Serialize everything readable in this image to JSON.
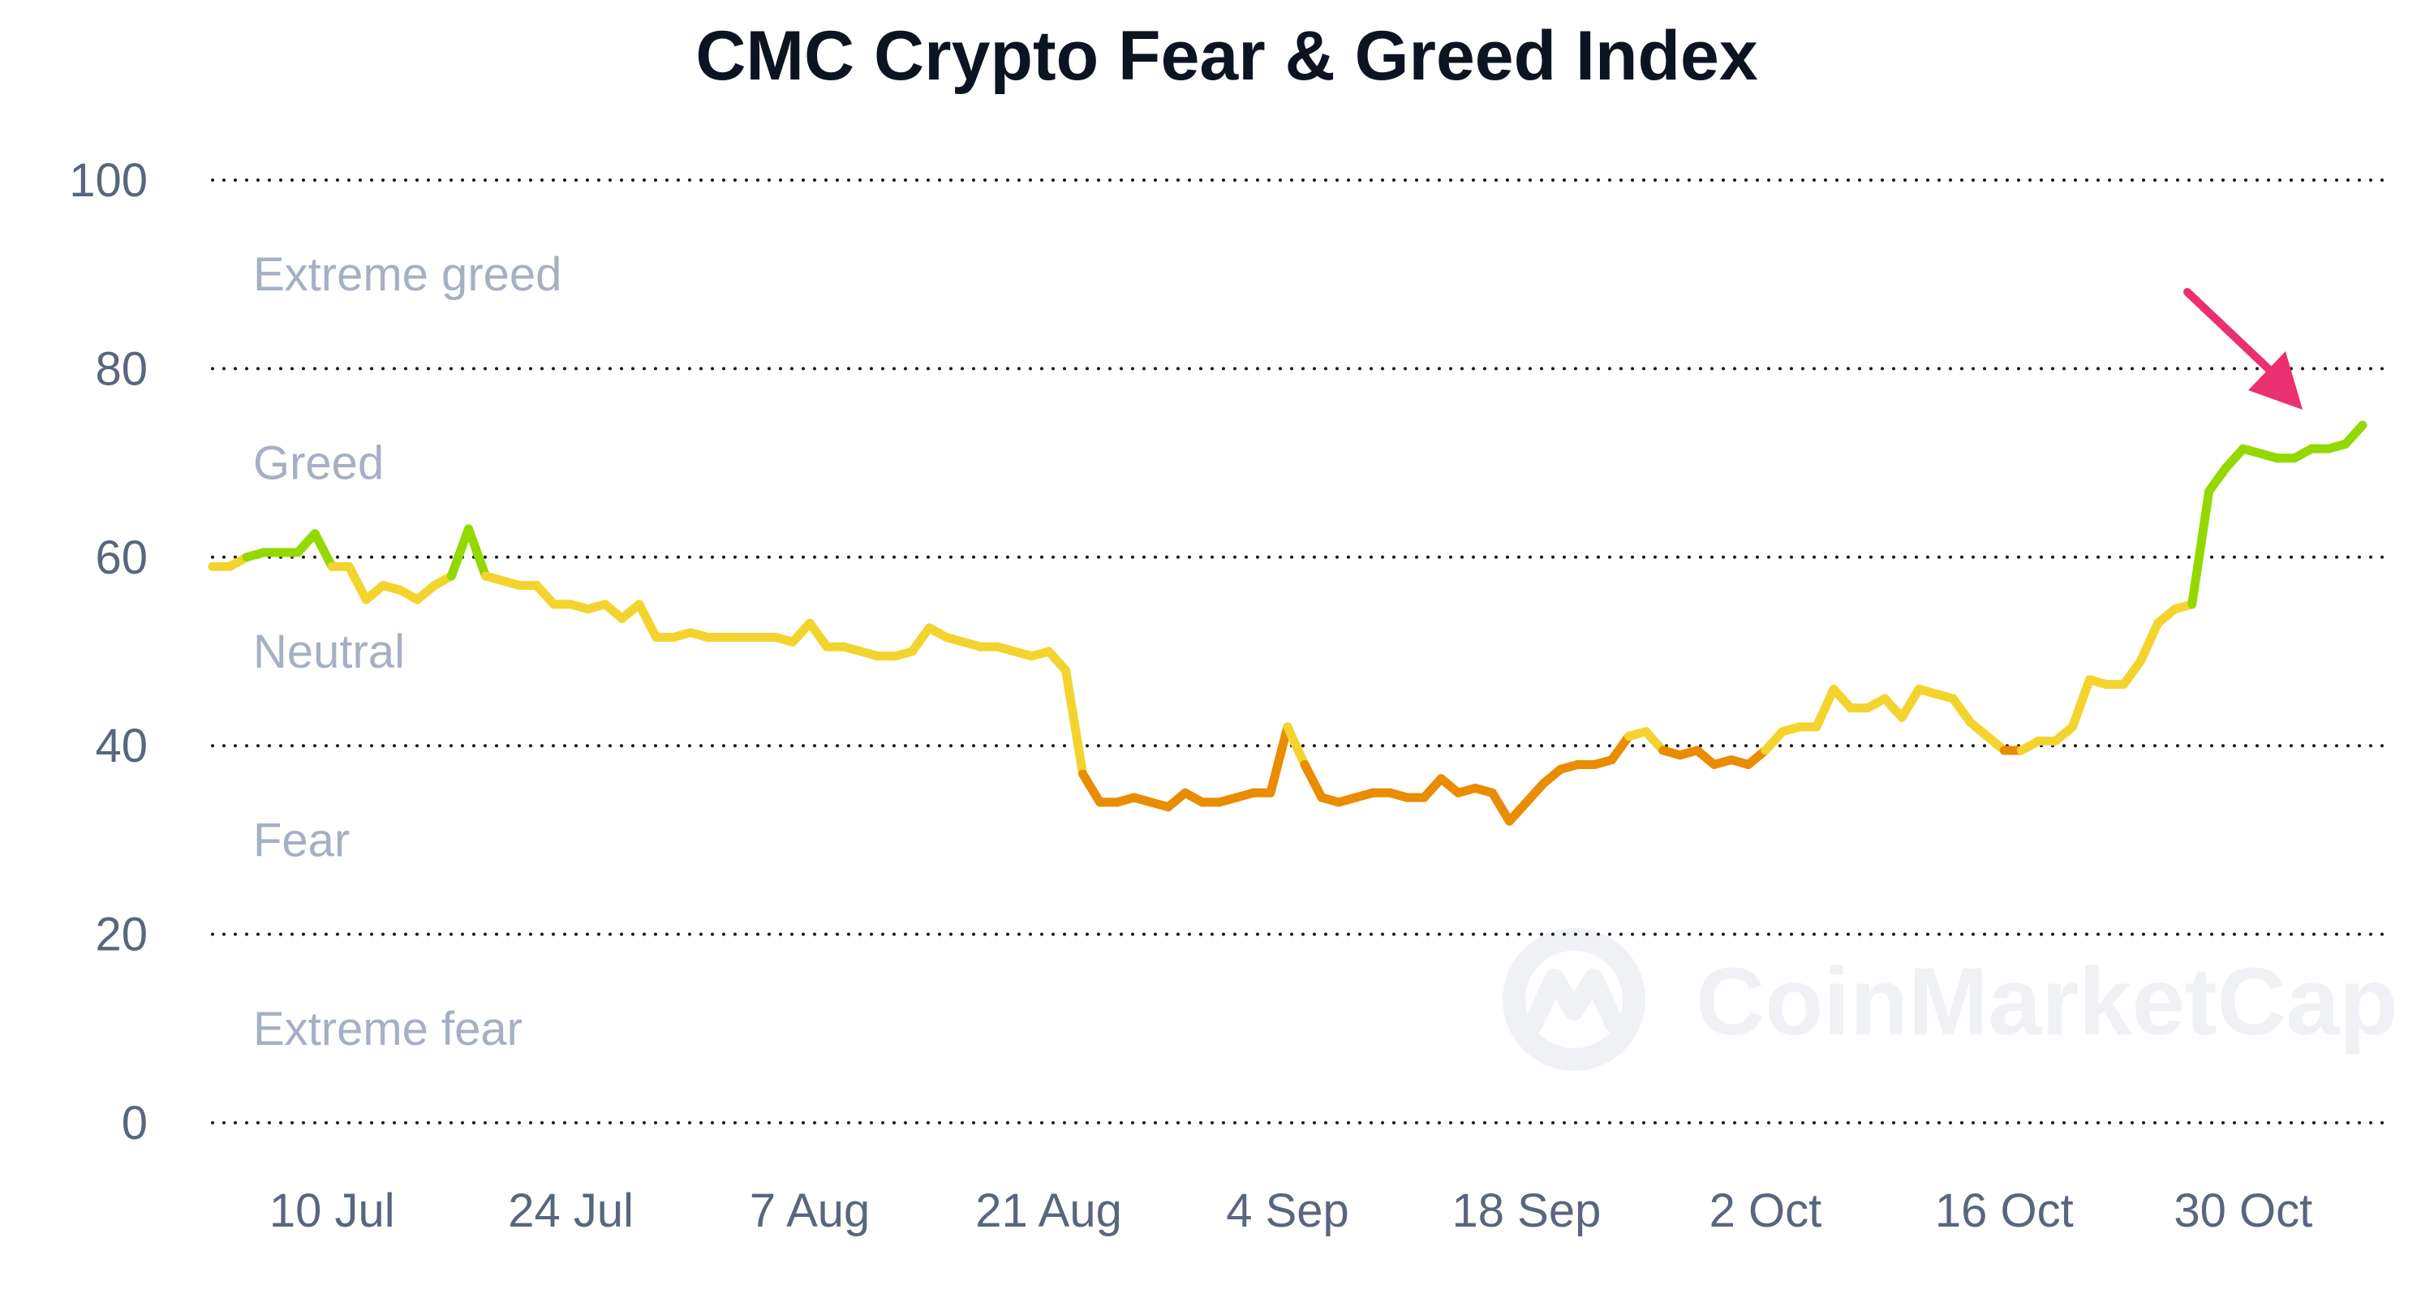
{
  "watermark": {
    "text": "CoinMarketCap",
    "icon": "coinmarketcap-logo-icon"
  },
  "chart_data": {
    "type": "line",
    "title": "CMC Crypto Fear & Greed Index",
    "xlabel": "",
    "ylabel": "",
    "ylim": [
      0,
      100
    ],
    "yticks": [
      0,
      20,
      40,
      60,
      80,
      100
    ],
    "grid": "dotted horizontal",
    "x_ticks": [
      "10 Jul",
      "24 Jul",
      "7 Aug",
      "21 Aug",
      "4 Sep",
      "18 Sep",
      "2 Oct",
      "16 Oct",
      "30 Oct"
    ],
    "zones": [
      {
        "label": "Extreme greed",
        "from": 80,
        "to": 100,
        "color": "#16c784"
      },
      {
        "label": "Greed",
        "from": 60,
        "to": 80,
        "color": "#93d900"
      },
      {
        "label": "Neutral",
        "from": 40,
        "to": 60,
        "color": "#f3d42f"
      },
      {
        "label": "Fear",
        "from": 20,
        "to": 40,
        "color": "#ea8c00"
      },
      {
        "label": "Extreme fear",
        "from": 0,
        "to": 20,
        "color": "#ea3943"
      }
    ],
    "x_start": "2023-07-03",
    "series": [
      {
        "values": [
          59,
          59,
          60,
          60.5,
          60.5,
          60.5,
          62.5,
          59,
          59,
          55.5,
          57,
          56.5,
          55.5,
          57,
          58,
          63,
          58,
          57.5,
          57,
          57,
          55,
          55,
          54.5,
          55,
          53.5,
          55,
          51.5,
          51.5,
          52,
          51.5,
          51.5,
          51.5,
          51.5,
          51.5,
          51,
          53,
          50.5,
          50.5,
          50,
          49.5,
          49.5,
          50,
          52.5,
          51.5,
          51,
          50.5,
          50.5,
          50,
          49.5,
          50,
          48,
          37,
          34,
          34,
          34.5,
          34,
          33.5,
          35,
          34,
          34,
          34.5,
          35,
          35,
          42,
          38,
          34.5,
          34,
          34.5,
          35,
          35,
          34.5,
          34.5,
          36.5,
          35,
          35.5,
          35,
          32,
          34,
          36,
          37.5,
          38,
          38,
          38.5,
          41,
          41.5,
          39.5,
          39,
          39.5,
          38,
          38.5,
          38,
          39.5,
          41.5,
          42,
          42,
          46,
          44,
          44,
          45,
          43,
          46,
          45.5,
          45,
          42.5,
          41,
          39.5,
          39.5,
          40.5,
          40.5,
          42,
          47,
          46.5,
          46.5,
          49,
          53,
          54.5,
          55,
          67,
          69.5,
          71.5,
          71,
          70.5,
          70.5,
          71.5,
          71.5,
          72,
          74
        ]
      }
    ],
    "annotation": {
      "type": "arrow",
      "color": "#ea3071",
      "points_to": "latest value"
    }
  }
}
